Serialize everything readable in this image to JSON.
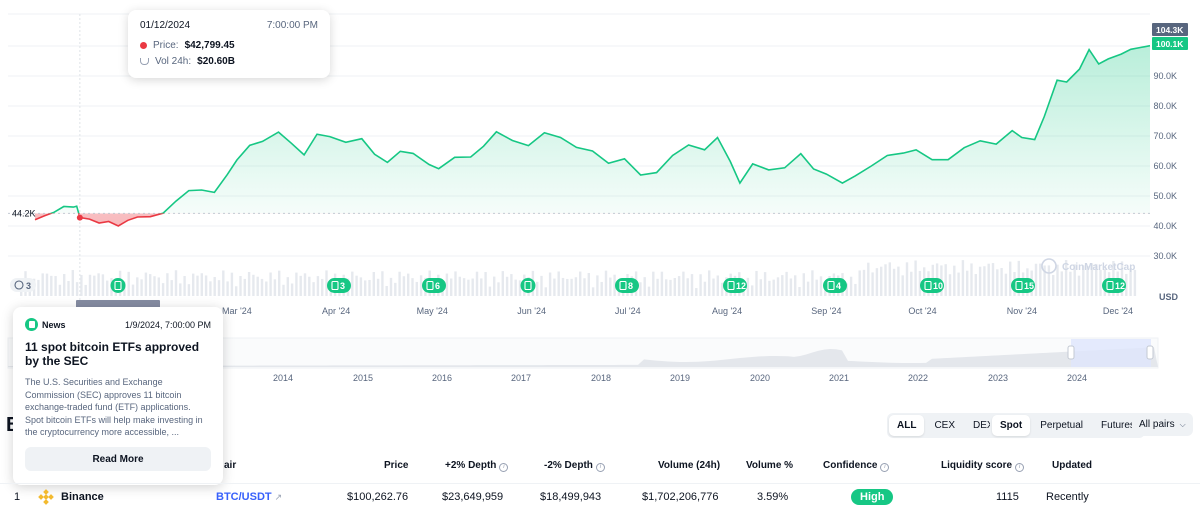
{
  "chart_data": {
    "type": "area",
    "ylabel": "USD",
    "yticks": [
      "30.0K",
      "40.0K",
      "50.0K",
      "60.0K",
      "70.0K",
      "80.0K",
      "90.0K"
    ],
    "ylim": [
      20000,
      110000
    ],
    "x_tick_labels": [
      "Mar '24",
      "Apr '24",
      "May '24",
      "Jun '24",
      "Jul '24",
      "Aug '24",
      "Sep '24",
      "Oct '24",
      "Nov '24",
      "Dec '24"
    ],
    "overview_year_labels": [
      "2014",
      "2015",
      "2016",
      "2017",
      "2018",
      "2019",
      "2020",
      "2021",
      "2022",
      "2023",
      "2024"
    ],
    "baseline": 44200,
    "baseline_label": "44.2K",
    "current_high_label": "104.3K",
    "current_price_label": "100.1K",
    "colors": {
      "up": "#16c784",
      "down": "#ea3943"
    },
    "x": [
      "2023-12-29",
      "2024-01-01",
      "2024-01-04",
      "2024-01-07",
      "2024-01-10",
      "2024-01-11",
      "2024-01-12",
      "2024-01-15",
      "2024-01-18",
      "2024-01-21",
      "2024-01-24",
      "2024-01-27",
      "2024-01-30",
      "2024-02-03",
      "2024-02-07",
      "2024-02-11",
      "2024-02-15",
      "2024-02-19",
      "2024-02-23",
      "2024-02-27",
      "2024-03-01",
      "2024-03-05",
      "2024-03-09",
      "2024-03-14",
      "2024-03-18",
      "2024-03-22",
      "2024-03-26",
      "2024-03-30",
      "2024-04-04",
      "2024-04-09",
      "2024-04-13",
      "2024-04-17",
      "2024-04-21",
      "2024-04-25",
      "2024-04-30",
      "2024-05-03",
      "2024-05-08",
      "2024-05-13",
      "2024-05-17",
      "2024-05-21",
      "2024-05-26",
      "2024-05-31",
      "2024-06-05",
      "2024-06-10",
      "2024-06-15",
      "2024-06-20",
      "2024-06-25",
      "2024-06-30",
      "2024-07-05",
      "2024-07-10",
      "2024-07-15",
      "2024-07-20",
      "2024-07-25",
      "2024-07-29",
      "2024-08-02",
      "2024-08-05",
      "2024-08-09",
      "2024-08-14",
      "2024-08-19",
      "2024-08-24",
      "2024-08-28",
      "2024-09-01",
      "2024-09-06",
      "2024-09-10",
      "2024-09-15",
      "2024-09-20",
      "2024-09-25",
      "2024-09-29",
      "2024-10-04",
      "2024-10-09",
      "2024-10-14",
      "2024-10-19",
      "2024-10-24",
      "2024-10-29",
      "2024-11-01",
      "2024-11-05",
      "2024-11-08",
      "2024-11-12",
      "2024-11-15",
      "2024-11-19",
      "2024-11-22",
      "2024-11-25",
      "2024-11-28",
      "2024-12-02",
      "2024-12-05",
      "2024-12-08",
      "2024-12-11"
    ],
    "series": [
      {
        "values": [
          42100,
          43400,
          44600,
          46500,
          46300,
          46600,
          42800,
          42300,
          41000,
          41500,
          40000,
          41900,
          43000,
          43100,
          44300,
          48300,
          51800,
          52000,
          51200,
          57100,
          62000,
          66900,
          68200,
          71300,
          67600,
          63700,
          70600,
          69800,
          67900,
          69100,
          63900,
          61200,
          64900,
          64200,
          60500,
          59100,
          62900,
          63000,
          66600,
          71400,
          68500,
          66800,
          71100,
          69500,
          66200,
          65000,
          60900,
          62400,
          57000,
          57800,
          63500,
          67000,
          65400,
          69500,
          61500,
          54300,
          60700,
          58700,
          59400,
          64100,
          59000,
          57300,
          54300,
          56700,
          60000,
          63500,
          64300,
          65400,
          62100,
          62100,
          66100,
          68400,
          67300,
          71800,
          69500,
          68800,
          76500,
          88600,
          88000,
          92300,
          98800,
          94000,
          95700,
          97300,
          98900,
          99500,
          100100
        ]
      }
    ],
    "news_markers": [
      {
        "count": "3"
      },
      {
        "count": ""
      },
      {
        "count": "3"
      },
      {
        "count": "6"
      },
      {
        "count": ""
      },
      {
        "count": "8"
      },
      {
        "count": "12"
      },
      {
        "count": "4"
      },
      {
        "count": "10"
      },
      {
        "count": "15"
      },
      {
        "count": "12"
      }
    ],
    "watermark": "CoinMarketCap"
  },
  "tooltip": {
    "date": "01/12/2024",
    "time": "7:00:00 PM",
    "price_label": "Price:",
    "price_value": "$42,799.45",
    "vol_label": "Vol 24h:",
    "vol_value": "$20.60B"
  },
  "news": {
    "tag": "News",
    "date": "1/9/2024, 7:00:00 PM",
    "title": "11 spot bitcoin ETFs approved by the SEC",
    "body": "The U.S. Securities and Exchange Commission (SEC) approves 11 bitcoin exchange-traded fund (ETF) applications. Spot bitcoin ETFs will help make investing in the cryptocurrency more accessible, ...",
    "read_more": "Read More"
  },
  "section_title_partial": "B",
  "filters": {
    "exchange_types": [
      "ALL",
      "CEX",
      "DEX"
    ],
    "market_types": [
      "Spot",
      "Perpetual",
      "Futures"
    ],
    "pairs_dropdown": "All pairs"
  },
  "table": {
    "headers": {
      "pair": "air",
      "price": "Price",
      "depth_plus": "+2% Depth",
      "depth_minus": "-2% Depth",
      "volume": "Volume (24h)",
      "volume_pct": "Volume %",
      "confidence": "Confidence",
      "liquidity": "Liquidity score",
      "updated": "Updated"
    },
    "rows": [
      {
        "rank": "1",
        "exchange": "Binance",
        "pair": "BTC/USDT",
        "price": "$100,262.76",
        "depth_plus": "$23,649,959",
        "depth_minus": "$18,499,943",
        "volume": "$1,702,206,776",
        "volume_pct": "3.59%",
        "confidence": "High",
        "liquidity": "1115",
        "updated": "Recently"
      }
    ]
  }
}
